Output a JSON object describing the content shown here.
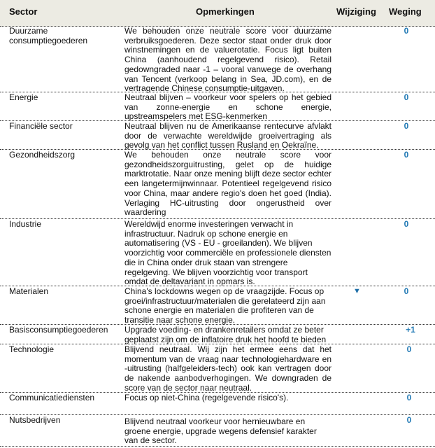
{
  "header": {
    "sector": "Sector",
    "remarks": "Opmerkingen",
    "change": "Wijziging",
    "weight": "Weging"
  },
  "accent_color": "#1f78b4",
  "rows": [
    {
      "sector": "Duurzame consumptiegoederen",
      "remarks": "We behouden onze neutrale score voor duurzame verbruiksgoederen. Deze sector staat onder druk door winstnemingen en de valuerotatie. Focus ligt buiten China (aanhoudend regelgevend risico). Retail gedowngraded naar -1 – vooral vanwege de overhang van Tencent (verkoop belang in Sea, JD.com), en de vertragende Chinese consumptie-uitgaven.",
      "change": "",
      "weight": "0"
    },
    {
      "sector": "Energie",
      "remarks": "Neutraal blijven – voorkeur voor spelers op het gebied van zonne-energie en schone energie, upstreamspelers met ESG-kenmerken",
      "change": "",
      "weight": "0"
    },
    {
      "sector": "Financiële sector",
      "remarks": "Neutraal blijven nu de Amerikaanse rentecurve afvlakt door de verwachte wereldwijde groeivertraging als gevolg van het conflict tussen Rusland en Oekraïne.",
      "change": "",
      "weight": "0"
    },
    {
      "sector": "Gezondheidszorg",
      "remarks": "We behouden onze neutrale score voor gezondheidszorguitrusting, gelet op de huidige marktrotatie. Naar onze mening blijft deze sector echter een langetermijnwinnaar. Potentieel regelgevend risico voor China, maar andere regio's doen het goed (India). Verlaging HC-uitrusting door ongerustheid over waardering",
      "change": "",
      "weight": "0"
    },
    {
      "sector": "Industrie",
      "remarks": "Wereldwijd enorme investeringen verwacht in infrastructuur. Nadruk op schone energie en automatisering (VS - EU - groeilanden). We blijven voorzichtig voor commerciële en professionele diensten die in China onder druk staan van strengere regelgeving. We blijven voorzichtig voor transport omdat de deltavariant in opmars is.",
      "change": "",
      "weight": "0"
    },
    {
      "sector": "Materialen",
      "remarks": "China's lockdowns wegen op de vraagzijde. Focus op groei/infrastructuur/materialen die gerelateerd zijn aan schone energie en materialen die profiteren van de transitie naar schone energie.",
      "change": "▼",
      "change_icon": "triangle-down-icon",
      "weight": "0"
    },
    {
      "sector": "Basisconsumptiegoederen",
      "remarks": "Upgrade voeding- en drankenretailers omdat ze beter geplaatst zijn om de inflatoire druk het hoofd te bieden",
      "change": "",
      "weight": "+1"
    },
    {
      "sector": "Technologie",
      "remarks": "Blijvend neutraal. Wij zijn het ermee eens dat het momentum van de vraag naar technologiehardware en -uitrusting (halfgeleiders-tech) ook kan vertragen door de nakende aanbodverhogingen. We downgraden de score van de sector naar neutraal.",
      "change": "",
      "weight": "0"
    },
    {
      "sector": "Communicatiediensten",
      "remarks": "Focus op niet-China (regelgevende risico's).",
      "change": "",
      "weight": "0"
    },
    {
      "sector": "Nutsbedrijven",
      "remarks": "Blijvend neutraal voorkeur voor hernieuwbare en groene energie, upgrade wegens defensief karakter van de sector.",
      "change": "",
      "weight": "0"
    }
  ]
}
